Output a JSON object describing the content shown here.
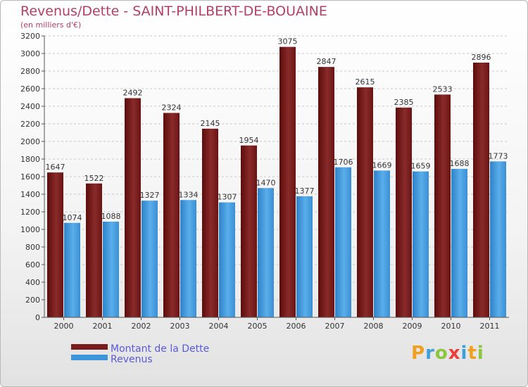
{
  "chart_data": {
    "type": "bar",
    "title": "Revenus/Dette - SAINT-PHILBERT-DE-BOUAINE",
    "subtitle": "(en milliers d'€)",
    "categories": [
      "2000",
      "2001",
      "2002",
      "2003",
      "2004",
      "2005",
      "2006",
      "2007",
      "2008",
      "2009",
      "2010",
      "2011"
    ],
    "series": [
      {
        "name": "Montant de la Dette",
        "color": "#7a1c1c",
        "values": [
          1647,
          1522,
          2492,
          2324,
          2145,
          1954,
          3075,
          2847,
          2615,
          2385,
          2533,
          2896
        ]
      },
      {
        "name": "Revenus",
        "color": "#3d96db",
        "values": [
          1074,
          1088,
          1327,
          1334,
          1307,
          1470,
          1377,
          1706,
          1669,
          1659,
          1688,
          1773
        ]
      }
    ],
    "ylim": [
      0,
      3200
    ],
    "yticks": [
      0,
      200,
      400,
      600,
      800,
      1000,
      1200,
      1400,
      1600,
      1800,
      2000,
      2200,
      2400,
      2600,
      2800,
      3000,
      3200
    ],
    "grid": true,
    "legend_position": "bottom-left"
  },
  "logo": {
    "letters": [
      "P",
      "r",
      "o",
      "x",
      "i",
      "t",
      "i"
    ],
    "colors": [
      "#f0a020",
      "#3da0d8",
      "#8cc63f",
      "#e8403a",
      "#3da0d8",
      "#f0a020",
      "#8cc63f"
    ]
  }
}
